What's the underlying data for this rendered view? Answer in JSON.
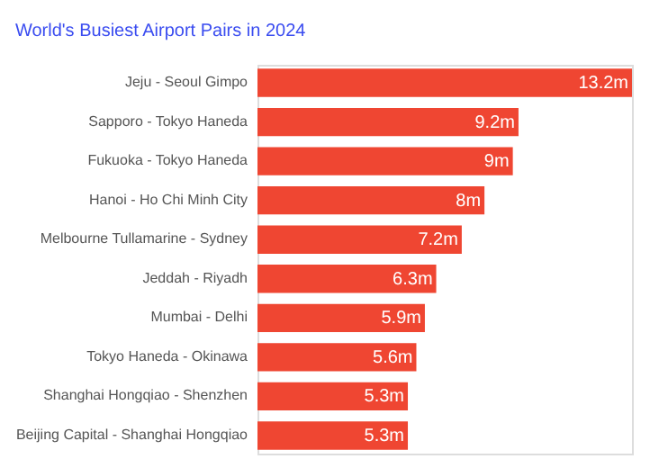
{
  "chart_data": {
    "type": "bar",
    "orientation": "horizontal",
    "title": "World's Busiest Airport Pairs in 2024",
    "categories": [
      "Jeju - Seoul Gimpo",
      "Sapporo - Tokyo Haneda",
      "Fukuoka - Tokyo Haneda",
      "Hanoi - Ho Chi Minh City",
      "Melbourne Tullamarine - Sydney",
      "Jeddah - Riyadh",
      "Mumbai - Delhi",
      "Tokyo Haneda - Okinawa",
      "Shanghai Hongqiao - Shenzhen",
      "Beijing Capital - Shanghai Hongqiao"
    ],
    "values": [
      13.2,
      9.2,
      9,
      8,
      7.2,
      6.3,
      5.9,
      5.6,
      5.3,
      5.3
    ],
    "value_labels": [
      "13.2m",
      "9.2m",
      "9m",
      "8m",
      "7.2m",
      "6.3m",
      "5.9m",
      "5.6m",
      "5.3m",
      "5.3m"
    ],
    "color": "#ef4632"
  }
}
